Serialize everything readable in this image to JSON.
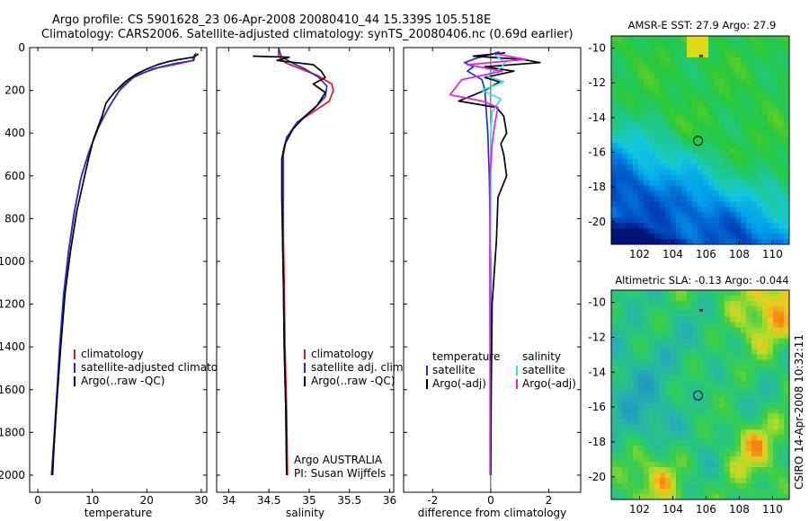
{
  "title_line1": "Argo profile: CS 5901628_23 06-Apr-2008 20080410_44 15.339S 105.518E",
  "title_line2": "Climatology: CARS2006. Satellite-adjusted climatology: synTS_20080406.nc (0.69d earlier)",
  "credit": "CSIRO 14-Apr-2008 10:32:11",
  "colors": {
    "red": "#e8141e",
    "blue": "#1e2ee6",
    "black": "#000000",
    "cyan": "#33dfe6",
    "magenta": "#e61ee6"
  },
  "depth_axis": {
    "ylim": [
      0,
      2080
    ],
    "ticks": [
      0,
      200,
      400,
      600,
      800,
      1000,
      1200,
      1400,
      1600,
      1800,
      2000
    ],
    "tick_labels": [
      "0",
      "200",
      "400",
      "600",
      "800",
      "1000",
      "1200",
      "1400",
      "1600",
      "1800",
      "2000"
    ]
  },
  "chart_data": [
    {
      "id": "temp",
      "type": "line",
      "xlabel": "temperature",
      "xlim": [
        -1.5,
        31
      ],
      "xticks": [
        0,
        10,
        20,
        30
      ],
      "xtick_labels": [
        "0",
        "10",
        "20",
        "30"
      ],
      "legend": [
        "climatology",
        "satellite-adjusted climatology",
        "Argo(..raw -QC)"
      ],
      "series": [
        {
          "name": "climatology",
          "color": "red",
          "points": [
            [
              28.8,
              30
            ],
            [
              28.4,
              60
            ],
            [
              26,
              75
            ],
            [
              22,
              95
            ],
            [
              18,
              130
            ],
            [
              15.5,
              180
            ],
            [
              13.5,
              260
            ],
            [
              11.5,
              350
            ],
            [
              9.5,
              480
            ],
            [
              8,
              600
            ],
            [
              6.8,
              760
            ],
            [
              5.7,
              950
            ],
            [
              4.8,
              1150
            ],
            [
              4.1,
              1400
            ],
            [
              3.5,
              1650
            ],
            [
              3,
              1850
            ],
            [
              2.6,
              2000
            ]
          ]
        },
        {
          "name": "satellite-adjusted climatology",
          "color": "blue",
          "points": [
            [
              29,
              25
            ],
            [
              28.6,
              60
            ],
            [
              25,
              75
            ],
            [
              21,
              100
            ],
            [
              17.5,
              140
            ],
            [
              15,
              200
            ],
            [
              13,
              280
            ],
            [
              11,
              380
            ],
            [
              9.2,
              500
            ],
            [
              7.8,
              620
            ],
            [
              6.6,
              780
            ],
            [
              5.6,
              960
            ],
            [
              4.7,
              1160
            ],
            [
              4,
              1400
            ],
            [
              3.4,
              1650
            ],
            [
              2.9,
              1850
            ],
            [
              2.5,
              2000
            ]
          ]
        },
        {
          "name": "Argo(..raw -QC)",
          "color": "black",
          "points": [
            [
              29.5,
              30
            ],
            [
              28.5,
              45
            ],
            [
              26,
              55
            ],
            [
              24,
              65
            ],
            [
              22,
              80
            ],
            [
              20,
              100
            ],
            [
              18,
              125
            ],
            [
              16,
              160
            ],
            [
              14,
              210
            ],
            [
              12.5,
              260
            ],
            [
              11.8,
              320
            ],
            [
              10.2,
              430
            ],
            [
              9.3,
              520
            ],
            [
              8.6,
              600
            ],
            [
              7.2,
              760
            ],
            [
              6,
              950
            ],
            [
              5,
              1150
            ],
            [
              4.2,
              1400
            ],
            [
              3.5,
              1650
            ],
            [
              3,
              1850
            ],
            [
              2.7,
              2000
            ]
          ]
        }
      ]
    },
    {
      "id": "sal",
      "type": "line",
      "xlabel": "salinity",
      "xlim": [
        33.85,
        36.05
      ],
      "xticks": [
        34,
        34.5,
        35,
        35.5,
        36
      ],
      "xtick_labels": [
        "34",
        "34.5",
        "35",
        "35.5",
        "36"
      ],
      "legend": [
        "climatology",
        "satellite adj. clim.",
        "Argo(..raw -QC)"
      ],
      "annotations": [
        "Argo AUSTRALIA",
        "PI: Susan Wijffels"
      ],
      "series": [
        {
          "name": "climatology",
          "color": "red",
          "points": [
            [
              34.62,
              0
            ],
            [
              34.62,
              40
            ],
            [
              34.7,
              70
            ],
            [
              34.9,
              100
            ],
            [
              35.1,
              130
            ],
            [
              35.28,
              170
            ],
            [
              35.3,
              200
            ],
            [
              35.25,
              250
            ],
            [
              35.05,
              300
            ],
            [
              34.85,
              350
            ],
            [
              34.72,
              420
            ],
            [
              34.68,
              500
            ],
            [
              34.68,
              700
            ],
            [
              34.68,
              900
            ],
            [
              34.69,
              1100
            ],
            [
              34.7,
              1400
            ],
            [
              34.72,
              1700
            ],
            [
              34.73,
              2000
            ]
          ]
        },
        {
          "name": "satellite adj. clim.",
          "color": "blue",
          "points": [
            [
              34.62,
              0
            ],
            [
              34.65,
              40
            ],
            [
              34.78,
              70
            ],
            [
              34.95,
              100
            ],
            [
              35.12,
              140
            ],
            [
              35.22,
              180
            ],
            [
              35.2,
              230
            ],
            [
              35.05,
              290
            ],
            [
              34.85,
              350
            ],
            [
              34.72,
              420
            ],
            [
              34.67,
              500
            ],
            [
              34.67,
              700
            ],
            [
              34.67,
              900
            ],
            [
              34.68,
              1100
            ],
            [
              34.69,
              1400
            ],
            [
              34.71,
              1700
            ],
            [
              34.72,
              2000
            ]
          ]
        },
        {
          "name": "Argo(..raw -QC)",
          "color": "black",
          "points": [
            [
              34.3,
              40
            ],
            [
              34.75,
              45
            ],
            [
              34.6,
              60
            ],
            [
              35.05,
              80
            ],
            [
              35.15,
              110
            ],
            [
              35.2,
              140
            ],
            [
              35.05,
              170
            ],
            [
              35.2,
              210
            ],
            [
              35.1,
              270
            ],
            [
              34.95,
              320
            ],
            [
              34.8,
              380
            ],
            [
              34.7,
              450
            ],
            [
              34.66,
              520
            ],
            [
              34.66,
              700
            ],
            [
              34.67,
              900
            ],
            [
              34.68,
              1100
            ],
            [
              34.69,
              1400
            ],
            [
              34.71,
              1700
            ],
            [
              34.72,
              2000
            ]
          ]
        }
      ]
    },
    {
      "id": "diff",
      "type": "line",
      "xlabel": "difference from climatology",
      "xlim": [
        -3,
        3.1
      ],
      "xticks": [
        -2,
        0,
        2
      ],
      "xtick_labels": [
        "-2",
        "0",
        "2"
      ],
      "legend_temp": [
        "temperature",
        "satellite",
        "Argo(-adj)"
      ],
      "legend_sal": [
        "salinity",
        "satellite",
        "Argo(-adj)"
      ],
      "series": [
        {
          "name": "satellite",
          "color": "blue",
          "points": [
            [
              0.3,
              20
            ],
            [
              -0.5,
              50
            ],
            [
              -0.9,
              70
            ],
            [
              -0.6,
              90
            ],
            [
              -0.8,
              110
            ],
            [
              -0.3,
              150
            ],
            [
              -0.2,
              200
            ],
            [
              -0.15,
              300
            ],
            [
              -0.1,
              400
            ],
            [
              -0.05,
              600
            ],
            [
              0,
              1000
            ],
            [
              0,
              2000
            ]
          ]
        },
        {
          "name": "Argo(-adj)",
          "color": "black",
          "points": [
            [
              0.5,
              25
            ],
            [
              -0.6,
              40
            ],
            [
              1.1,
              55
            ],
            [
              1.7,
              70
            ],
            [
              -0.2,
              90
            ],
            [
              0.8,
              110
            ],
            [
              -0.2,
              140
            ],
            [
              0.3,
              160
            ],
            [
              -0.2,
              200
            ],
            [
              -1.1,
              250
            ],
            [
              0.2,
              280
            ],
            [
              0.45,
              320
            ],
            [
              0.55,
              400
            ],
            [
              0.35,
              450
            ],
            [
              0.45,
              500
            ],
            [
              0.55,
              600
            ],
            [
              0.4,
              650
            ],
            [
              0.25,
              700
            ],
            [
              0.2,
              900
            ],
            [
              0.05,
              1200
            ],
            [
              0.02,
              1600
            ],
            [
              0,
              2000
            ]
          ]
        },
        {
          "name": "salinity satellite",
          "color": "cyan",
          "points": [
            [
              0.1,
              30
            ],
            [
              0.5,
              70
            ],
            [
              0.3,
              100
            ],
            [
              -0.2,
              130
            ],
            [
              0.45,
              160
            ],
            [
              -0.3,
              200
            ],
            [
              0.35,
              240
            ],
            [
              0.05,
              300
            ],
            [
              0,
              400
            ],
            [
              0,
              700
            ],
            [
              -0.02,
              1200
            ],
            [
              -0.02,
              2000
            ]
          ]
        },
        {
          "name": "salinity Argo(-adj)",
          "color": "magenta",
          "points": [
            [
              0.2,
              30
            ],
            [
              1.2,
              55
            ],
            [
              -0.8,
              80
            ],
            [
              0.4,
              110
            ],
            [
              -1,
              150
            ],
            [
              -1.4,
              220
            ],
            [
              -0.3,
              250
            ],
            [
              0.25,
              280
            ],
            [
              0.15,
              350
            ],
            [
              0.05,
              450
            ],
            [
              -0.02,
              600
            ],
            [
              -0.03,
              1000
            ],
            [
              -0.02,
              1500
            ],
            [
              -0.02,
              2000
            ]
          ]
        }
      ]
    },
    {
      "id": "sst_map",
      "type": "heatmap",
      "title": "AMSR-E SST: 27.9 Argo: 27.9",
      "xlim": [
        100.3,
        111
      ],
      "ylim": [
        -21.3,
        -9.3
      ],
      "xticks": [
        102,
        104,
        106,
        108,
        110
      ],
      "yticks": [
        -10,
        -12,
        -14,
        -16,
        -18,
        -20
      ],
      "ytick_labels": [
        "-10",
        "-12",
        "-14",
        "-16",
        "-18",
        "-20"
      ],
      "marker": {
        "lon": 105.518,
        "lat": -15.339
      }
    },
    {
      "id": "sla_map",
      "type": "heatmap",
      "title": "Altimetric SLA: -0.13 Argo: -0.044",
      "xlim": [
        100.3,
        111
      ],
      "ylim": [
        -21.3,
        -9.3
      ],
      "xticks": [
        102,
        104,
        106,
        108,
        110
      ],
      "yticks": [
        -10,
        -12,
        -14,
        -16,
        -18,
        -20
      ],
      "ytick_labels": [
        "-10",
        "-12",
        "-14",
        "-16",
        "-18",
        "-20"
      ],
      "marker": {
        "lon": 105.518,
        "lat": -15.339
      }
    }
  ]
}
